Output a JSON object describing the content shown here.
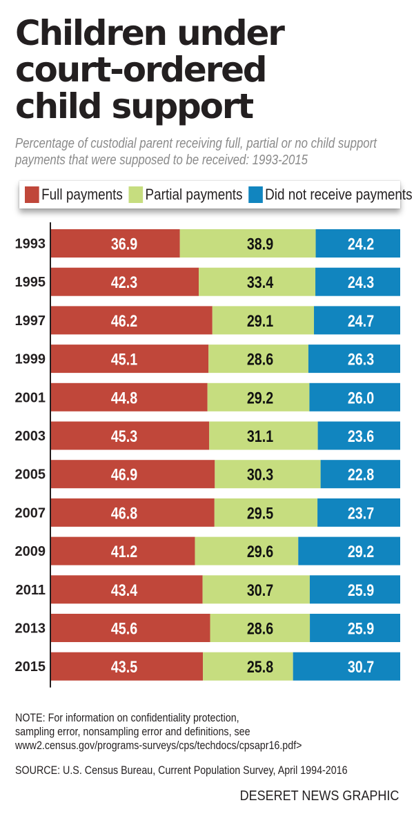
{
  "header": {
    "title_lines": [
      "Children under",
      "court-ordered",
      "child support"
    ],
    "subtitle_lines": [
      "Percentage of custodial parent receiving full, partial or no child support",
      "payments that were supposed to be received: 1993-2015"
    ]
  },
  "legend": [
    {
      "label": "Full payments",
      "color": "#c0473a"
    },
    {
      "label": "Partial payments",
      "color": "#c6dd7f"
    },
    {
      "label": "Did not receive payments",
      "color": "#1185bf"
    }
  ],
  "footer": {
    "note_lines": [
      "NOTE: For information on confidentiality protection,",
      "sampling error, nonsampling error and definitions, see",
      "www2.census.gov/programs-surveys/cps/techdocs/cpsapr16.pdf>"
    ],
    "source": "SOURCE: U.S. Census Bureau, Current Population Survey, April 1994-2016",
    "credit": "DESERET NEWS GRAPHIC"
  },
  "chart_data": {
    "type": "bar",
    "orientation": "horizontal",
    "stacked": "percent",
    "title": "Children under court-ordered child support",
    "subtitle": "Percentage of custodial parent receiving full, partial or no child support payments that were supposed to be received: 1993-2015",
    "xlabel": "",
    "ylabel": "",
    "xlim": [
      0,
      100
    ],
    "grid": false,
    "legend_position": "top",
    "data_labels": true,
    "categories": [
      "1993",
      "1995",
      "1997",
      "1999",
      "2001",
      "2003",
      "2005",
      "2007",
      "2009",
      "2011",
      "2013",
      "2015"
    ],
    "series": [
      {
        "name": "Full payments",
        "color": "#c0473a",
        "label_color": "#ffffff",
        "values": [
          36.9,
          42.3,
          46.2,
          45.1,
          44.8,
          45.3,
          46.9,
          46.8,
          41.2,
          43.4,
          45.6,
          43.5
        ]
      },
      {
        "name": "Partial payments",
        "color": "#c6dd7f",
        "label_color": "#111111",
        "values": [
          38.9,
          33.4,
          29.1,
          28.6,
          29.2,
          31.1,
          30.3,
          29.5,
          29.6,
          30.7,
          28.6,
          25.8
        ]
      },
      {
        "name": "Did not receive payments",
        "color": "#1185bf",
        "label_color": "#ffffff",
        "values": [
          24.2,
          24.3,
          24.7,
          26.3,
          26.0,
          23.6,
          22.8,
          23.7,
          29.2,
          25.9,
          25.9,
          30.7
        ]
      }
    ]
  }
}
